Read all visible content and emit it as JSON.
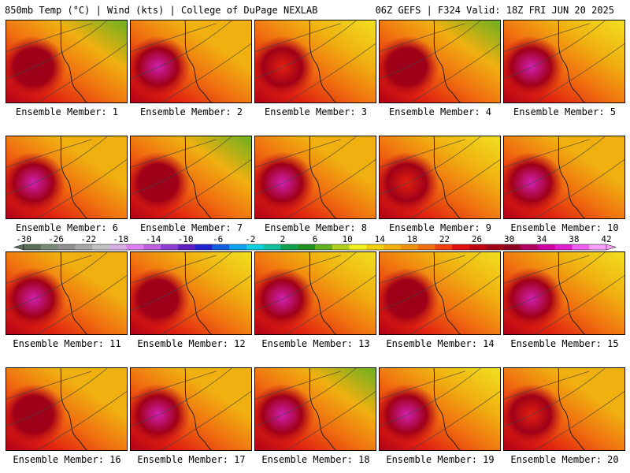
{
  "header": {
    "left": "850mb Temp (°C) | Wind (kts) | College of DuPage NEXLAB",
    "right": "06Z GEFS | F324 Valid: 18Z FRI JUN 20 2025"
  },
  "panels": [
    {
      "label": "Ensemble Member: 1",
      "ne": "green",
      "core": "darkred"
    },
    {
      "label": "Ensemble Member: 2",
      "ne": "orange",
      "core": "magenta"
    },
    {
      "label": "Ensemble Member: 3",
      "ne": "yellow",
      "core": "red"
    },
    {
      "label": "Ensemble Member: 4",
      "ne": "green",
      "core": "darkred"
    },
    {
      "label": "Ensemble Member: 5",
      "ne": "yellow",
      "core": "magenta"
    },
    {
      "label": "Ensemble Member: 6",
      "ne": "orange",
      "core": "magenta"
    },
    {
      "label": "Ensemble Member: 7",
      "ne": "green",
      "core": "darkred"
    },
    {
      "label": "Ensemble Member: 8",
      "ne": "orange",
      "core": "magenta"
    },
    {
      "label": "Ensemble Member: 9",
      "ne": "yellow",
      "core": "red"
    },
    {
      "label": "Ensemble Member: 10",
      "ne": "orange",
      "core": "magenta"
    },
    {
      "label": "Ensemble Member: 11",
      "ne": "orange",
      "core": "magenta"
    },
    {
      "label": "Ensemble Member: 12",
      "ne": "yellow",
      "core": "darkred"
    },
    {
      "label": "Ensemble Member: 13",
      "ne": "yellow",
      "core": "magenta"
    },
    {
      "label": "Ensemble Member: 14",
      "ne": "yellow",
      "core": "darkred"
    },
    {
      "label": "Ensemble Member: 15",
      "ne": "yellow",
      "core": "magenta"
    },
    {
      "label": "Ensemble Member: 16",
      "ne": "orange",
      "core": "darkred"
    },
    {
      "label": "Ensemble Member: 17",
      "ne": "orange",
      "core": "magenta"
    },
    {
      "label": "Ensemble Member: 18",
      "ne": "green",
      "core": "magenta"
    },
    {
      "label": "Ensemble Member: 19",
      "ne": "yellow",
      "core": "magenta"
    },
    {
      "label": "Ensemble Member: 20",
      "ne": "orange",
      "core": "red"
    }
  ],
  "colorbar": {
    "ticks": [
      "-30",
      "-26",
      "-22",
      "-18",
      "-14",
      "-10",
      "-6",
      "-2",
      "2",
      "6",
      "10",
      "14",
      "18",
      "22",
      "26",
      "30",
      "34",
      "38",
      "42"
    ],
    "colors": [
      "#5c6e5c",
      "#7a8a78",
      "#8f8f8f",
      "#a8a8a8",
      "#c0c0c0",
      "#d8b0e8",
      "#e080f0",
      "#c060e0",
      "#9040d0",
      "#6020c0",
      "#2020d0",
      "#1060e0",
      "#10a0f0",
      "#10d0e0",
      "#10c0a0",
      "#10a050",
      "#209020",
      "#60b020",
      "#b0d020",
      "#f0f020",
      "#f0d010",
      "#f0b010",
      "#f09010",
      "#f07010",
      "#f04010",
      "#e01010",
      "#c00010",
      "#a00018",
      "#900020",
      "#b00060",
      "#d000a0",
      "#e020d0",
      "#f060f0",
      "#f8a0f8"
    ]
  }
}
